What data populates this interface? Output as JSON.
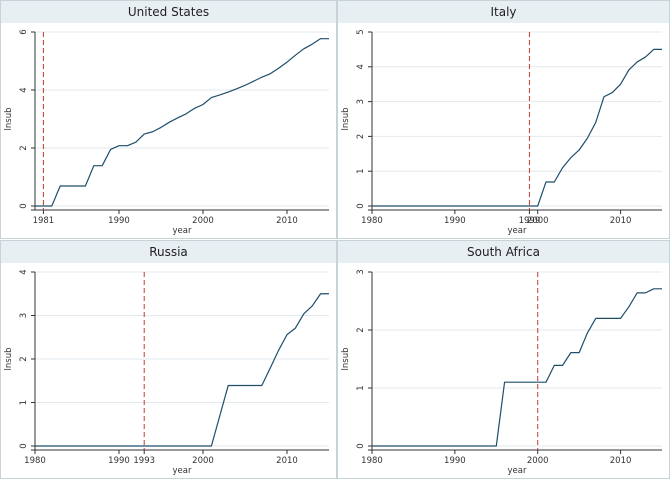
{
  "colors": {
    "header_bg": "#e7eff3",
    "plot_bg": "#ffffff",
    "line": "#1f4e6b",
    "policy_line": "#c0392b",
    "grid": "#e3e9ec",
    "axis": "#333333"
  },
  "chart_data": [
    {
      "type": "line",
      "title": "United States",
      "xlabel": "year",
      "ylabel": "lnsub",
      "xlim": [
        1980,
        2015
      ],
      "ylim": [
        0,
        6
      ],
      "xticks": [
        1981,
        1990,
        2000,
        2010
      ],
      "yticks": [
        0,
        2,
        4,
        6
      ],
      "grid": true,
      "vline": 1981,
      "x": [
        1980,
        1981,
        1982,
        1983,
        1984,
        1985,
        1986,
        1987,
        1988,
        1989,
        1990,
        1991,
        1992,
        1993,
        1994,
        1995,
        1996,
        1997,
        1998,
        1999,
        2000,
        2001,
        2002,
        2003,
        2004,
        2005,
        2006,
        2007,
        2008,
        2009,
        2010,
        2011,
        2012,
        2013,
        2014,
        2015
      ],
      "y": [
        0,
        0,
        0,
        0.69,
        0.69,
        0.69,
        0.69,
        1.39,
        1.39,
        1.95,
        2.08,
        2.08,
        2.2,
        2.48,
        2.56,
        2.71,
        2.89,
        3.04,
        3.18,
        3.37,
        3.5,
        3.74,
        3.83,
        3.93,
        4.04,
        4.16,
        4.3,
        4.44,
        4.56,
        4.75,
        4.96,
        5.2,
        5.42,
        5.58,
        5.77,
        5.77
      ]
    },
    {
      "type": "line",
      "title": "Italy",
      "xlabel": "year",
      "ylabel": "lnsub",
      "xlim": [
        1980,
        2015
      ],
      "ylim": [
        0,
        5
      ],
      "xticks": [
        1980,
        1990,
        1999,
        2000,
        2010
      ],
      "yticks": [
        0,
        1,
        2,
        3,
        4,
        5
      ],
      "grid": true,
      "vline": 1999,
      "x": [
        1980,
        1999,
        2000,
        2001,
        2002,
        2003,
        2004,
        2005,
        2006,
        2007,
        2008,
        2009,
        2010,
        2011,
        2012,
        2013,
        2014,
        2015
      ],
      "y": [
        0,
        0,
        0,
        0.69,
        0.69,
        1.1,
        1.39,
        1.61,
        1.95,
        2.4,
        3.14,
        3.26,
        3.5,
        3.91,
        4.14,
        4.28,
        4.5,
        4.5
      ]
    },
    {
      "type": "line",
      "title": "Russia",
      "xlabel": "year",
      "ylabel": "lnsub",
      "xlim": [
        1980,
        2015
      ],
      "ylim": [
        0,
        4
      ],
      "xticks": [
        1980,
        1990,
        1993,
        2000,
        2010
      ],
      "yticks": [
        0,
        1,
        2,
        3,
        4
      ],
      "grid": true,
      "vline": 1993,
      "x": [
        1980,
        2001,
        2003,
        2004,
        2005,
        2006,
        2007,
        2008,
        2009,
        2010,
        2011,
        2012,
        2013,
        2014,
        2015
      ],
      "y": [
        0,
        0,
        1.39,
        1.39,
        1.39,
        1.39,
        1.39,
        1.79,
        2.2,
        2.56,
        2.71,
        3.04,
        3.22,
        3.5,
        3.5
      ]
    },
    {
      "type": "line",
      "title": "South Africa",
      "xlabel": "year",
      "ylabel": "lnsub",
      "xlim": [
        1980,
        2015
      ],
      "ylim": [
        0,
        3
      ],
      "xticks": [
        1980,
        1990,
        2000,
        2010
      ],
      "yticks": [
        0,
        1,
        2,
        3
      ],
      "grid": true,
      "vline": 2000,
      "x": [
        1980,
        1995,
        1996,
        1997,
        1998,
        1999,
        2000,
        2001,
        2002,
        2003,
        2004,
        2005,
        2006,
        2007,
        2008,
        2009,
        2010,
        2011,
        2012,
        2013,
        2014,
        2015
      ],
      "y": [
        0,
        0,
        1.1,
        1.1,
        1.1,
        1.1,
        1.1,
        1.1,
        1.39,
        1.39,
        1.61,
        1.61,
        1.95,
        2.2,
        2.2,
        2.2,
        2.2,
        2.4,
        2.64,
        2.64,
        2.71,
        2.71
      ]
    }
  ]
}
